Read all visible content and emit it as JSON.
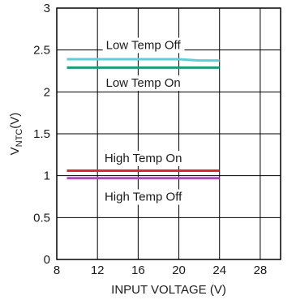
{
  "chart_data": {
    "type": "line",
    "xlabel": "INPUT VOLTAGE (V)",
    "ylabel": {
      "main": "V",
      "sub": "NTC",
      "suffix": "(V)"
    },
    "xlim": [
      8,
      30
    ],
    "ylim": [
      0,
      3
    ],
    "x_ticks": [
      8,
      12,
      16,
      20,
      24,
      28
    ],
    "y_ticks": [
      0,
      0.5,
      1,
      1.5,
      2,
      2.5,
      3
    ],
    "x_tick_labels": [
      "8",
      "12",
      "16",
      "20",
      "24",
      "28"
    ],
    "y_tick_labels": [
      "0",
      "0.5",
      "1",
      "1.5",
      "2",
      "2.5",
      "3"
    ],
    "grid": true,
    "series": [
      {
        "name": "Low Temp Off",
        "color": "#5ecfd6",
        "x": [
          9,
          12,
          16,
          20,
          22,
          24
        ],
        "y": [
          2.39,
          2.39,
          2.39,
          2.39,
          2.375,
          2.375
        ]
      },
      {
        "name": "Low Temp On",
        "color": "#1e9c78",
        "x": [
          9,
          12,
          16,
          20,
          24
        ],
        "y": [
          2.29,
          2.29,
          2.29,
          2.29,
          2.29
        ]
      },
      {
        "name": "High Temp On",
        "color": "#e0262b",
        "x": [
          9,
          12,
          16,
          20,
          24
        ],
        "y": [
          1.06,
          1.06,
          1.06,
          1.06,
          1.06
        ]
      },
      {
        "name": "High Temp Off",
        "color": "#a250b0",
        "x": [
          9,
          12,
          16,
          20,
          24
        ],
        "y": [
          0.97,
          0.97,
          0.97,
          0.97,
          0.97
        ]
      }
    ],
    "annotations": [
      {
        "text": "Low Temp Off",
        "x": 16.5,
        "y": 2.55
      },
      {
        "text": "Low Temp On",
        "x": 16.5,
        "y": 2.1
      },
      {
        "text": "High Temp On",
        "x": 16.5,
        "y": 1.2
      },
      {
        "text": "High Temp Off",
        "x": 16.5,
        "y": 0.74
      }
    ]
  }
}
